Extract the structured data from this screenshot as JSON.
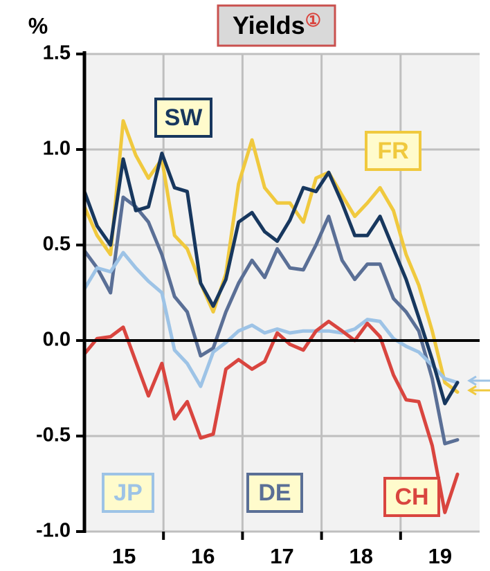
{
  "chart_data": {
    "type": "line",
    "title": "Yields",
    "title_note": "①",
    "y_label": "%",
    "x": [
      2015.0,
      2015.16,
      2015.33,
      2015.49,
      2015.65,
      2015.81,
      2015.98,
      2016.14,
      2016.3,
      2016.47,
      2016.63,
      2016.79,
      2016.95,
      2017.12,
      2017.28,
      2017.44,
      2017.6,
      2017.77,
      2017.93,
      2018.09,
      2018.26,
      2018.42,
      2018.58,
      2018.74,
      2018.91,
      2019.07,
      2019.23,
      2019.4,
      2019.56,
      2019.72
    ],
    "series": [
      {
        "name": "FR",
        "color": "#f0c93e",
        "values": [
          0.7,
          0.55,
          0.45,
          1.15,
          0.97,
          0.85,
          0.95,
          0.55,
          0.48,
          0.3,
          0.15,
          0.35,
          0.82,
          1.05,
          0.8,
          0.72,
          0.72,
          0.62,
          0.85,
          0.88,
          0.76,
          0.65,
          0.72,
          0.8,
          0.68,
          0.45,
          0.29,
          0.05,
          -0.22,
          -0.27
        ]
      },
      {
        "name": "DE",
        "color": "#5a6f96",
        "values": [
          0.47,
          0.38,
          0.25,
          0.75,
          0.7,
          0.62,
          0.45,
          0.23,
          0.15,
          -0.08,
          -0.04,
          0.15,
          0.3,
          0.42,
          0.33,
          0.48,
          0.38,
          0.37,
          0.5,
          0.65,
          0.42,
          0.32,
          0.4,
          0.4,
          0.22,
          0.15,
          0.05,
          -0.2,
          -0.54,
          -0.52
        ]
      },
      {
        "name": "JP",
        "color": "#9dc3e6",
        "values": [
          0.27,
          0.38,
          0.36,
          0.46,
          0.38,
          0.31,
          0.25,
          -0.05,
          -0.12,
          -0.24,
          -0.06,
          -0.01,
          0.05,
          0.08,
          0.04,
          0.06,
          0.04,
          0.05,
          0.05,
          0.05,
          0.04,
          0.06,
          0.11,
          0.1,
          0.01,
          -0.03,
          -0.06,
          -0.13,
          -0.2,
          -0.22
        ]
      },
      {
        "name": "SW",
        "color": "#17375e",
        "values": [
          0.78,
          0.6,
          0.5,
          0.95,
          0.68,
          0.7,
          0.98,
          0.8,
          0.78,
          0.3,
          0.18,
          0.32,
          0.62,
          0.67,
          0.57,
          0.52,
          0.63,
          0.8,
          0.78,
          0.88,
          0.72,
          0.55,
          0.55,
          0.65,
          0.48,
          0.32,
          0.12,
          -0.1,
          -0.33,
          -0.22
        ]
      },
      {
        "name": "CH",
        "color": "#d9453f",
        "values": [
          -0.07,
          0.01,
          0.02,
          0.07,
          -0.11,
          -0.29,
          -0.12,
          -0.41,
          -0.32,
          -0.51,
          -0.49,
          -0.15,
          -0.1,
          -0.15,
          -0.11,
          0.04,
          -0.02,
          -0.05,
          0.05,
          0.1,
          0.05,
          0.0,
          0.09,
          0.02,
          -0.18,
          -0.31,
          -0.32,
          -0.55,
          -0.9,
          -0.7
        ]
      }
    ],
    "xlim": [
      2015,
      2020
    ],
    "xticks": [
      {
        "value": 2015.5,
        "label": "15"
      },
      {
        "value": 2016.5,
        "label": "16"
      },
      {
        "value": 2017.5,
        "label": "17"
      },
      {
        "value": 2018.5,
        "label": "18"
      },
      {
        "value": 2019.5,
        "label": "19"
      }
    ],
    "xminor_ticks": [
      2016,
      2017,
      2018,
      2019
    ],
    "ylim": [
      -1.0,
      1.5
    ],
    "yticks": [
      1.5,
      {
        "value": 1.0,
        "label": "1.0"
      },
      0.5,
      {
        "value": 0.0,
        "label": "0.0"
      },
      -0.5,
      {
        "value": -1.0,
        "label": "-1.0"
      }
    ],
    "grid": true
  }
}
